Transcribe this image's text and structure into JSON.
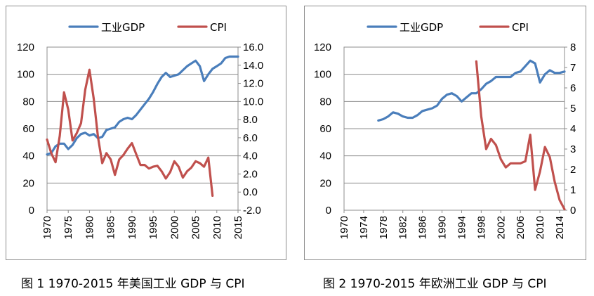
{
  "chart_data": [
    {
      "type": "line",
      "legend_position": "top",
      "series": [
        {
          "name": "工业GDP",
          "axis": "left",
          "color": "#4a7ebb",
          "x": [
            1970,
            1971,
            1972,
            1973,
            1974,
            1975,
            1976,
            1977,
            1978,
            1979,
            1980,
            1981,
            1982,
            1983,
            1984,
            1985,
            1986,
            1987,
            1988,
            1989,
            1990,
            1991,
            1992,
            1993,
            1994,
            1995,
            1996,
            1997,
            1998,
            1999,
            2000,
            2001,
            2002,
            2003,
            2004,
            2005,
            2006,
            2007,
            2008,
            2009,
            2010,
            2011,
            2012,
            2013,
            2014,
            2015
          ],
          "values": [
            41,
            42,
            47,
            49,
            49,
            45,
            48,
            53,
            56,
            57,
            55,
            56,
            53,
            54,
            59,
            60,
            61,
            65,
            67,
            68,
            67,
            70,
            74,
            78,
            82,
            87,
            93,
            98,
            101,
            98,
            99,
            100,
            103,
            106,
            108,
            110,
            106,
            95,
            100,
            104,
            106,
            108,
            112,
            113,
            113,
            113
          ]
        },
        {
          "name": "CPI",
          "axis": "right",
          "color": "#c0504d",
          "x": [
            1970,
            1971,
            1972,
            1973,
            1974,
            1975,
            1976,
            1977,
            1978,
            1979,
            1980,
            1981,
            1982,
            1983,
            1984,
            1985,
            1986,
            1987,
            1988,
            1989,
            1990,
            1991,
            1992,
            1993,
            1994,
            1995,
            1996,
            1997,
            1998,
            1999,
            2000,
            2001,
            2002,
            2003,
            2004,
            2005,
            2006,
            2007,
            2008,
            2009
          ],
          "values": [
            5.8,
            4.3,
            3.3,
            6.2,
            11.0,
            9.1,
            5.7,
            6.5,
            7.6,
            11.3,
            13.5,
            10.3,
            6.1,
            3.2,
            4.3,
            3.6,
            1.9,
            3.6,
            4.1,
            4.8,
            5.4,
            4.2,
            3.0,
            3.0,
            2.6,
            2.8,
            2.9,
            2.3,
            1.5,
            2.2,
            3.4,
            2.8,
            1.6,
            2.3,
            2.7,
            3.4,
            3.2,
            2.8,
            3.8,
            -0.4
          ]
        }
      ],
      "x_ticks": [
        "1970",
        "1975",
        "1980",
        "1985",
        "1990",
        "1995",
        "2000",
        "2005",
        "2010",
        "2015"
      ],
      "y_left_ticks": [
        "0",
        "20",
        "40",
        "60",
        "80",
        "100",
        "120"
      ],
      "y_right_ticks": [
        "-2.0",
        "0.0",
        "2.0",
        "4.0",
        "6.0",
        "8.0",
        "10.0",
        "12.0",
        "14.0",
        "16.0"
      ],
      "xlim": [
        1970,
        2015
      ],
      "ylim_left": [
        0,
        120
      ],
      "ylim_right": [
        -2,
        16
      ],
      "grid": "horizontal"
    },
    {
      "type": "line",
      "legend_position": "top",
      "series": [
        {
          "name": "工业GDP",
          "axis": "left",
          "color": "#4a7ebb",
          "x": [
            1977,
            1978,
            1979,
            1980,
            1981,
            1982,
            1983,
            1984,
            1985,
            1986,
            1987,
            1988,
            1989,
            1990,
            1991,
            1992,
            1993,
            1994,
            1995,
            1996,
            1997,
            1998,
            1999,
            2000,
            2001,
            2002,
            2003,
            2004,
            2005,
            2006,
            2007,
            2008,
            2009,
            2010,
            2011,
            2012,
            2013,
            2014,
            2015
          ],
          "values": [
            66,
            67,
            69,
            72,
            71,
            69,
            68,
            68,
            70,
            73,
            74,
            75,
            77,
            82,
            85,
            86,
            84,
            80,
            83,
            86,
            86,
            89,
            93,
            95,
            98,
            98,
            98,
            98,
            101,
            102,
            106,
            110,
            108,
            94,
            100,
            103,
            101,
            101,
            102
          ]
        },
        {
          "name": "CPI",
          "axis": "right",
          "color": "#c0504d",
          "x": [
            1997,
            1998,
            1999,
            2000,
            2001,
            2002,
            2003,
            2004,
            2005,
            2006,
            2007,
            2008,
            2009,
            2010,
            2011,
            2012,
            2013,
            2014,
            2015
          ],
          "values": [
            7.3,
            4.6,
            3.0,
            3.5,
            3.2,
            2.5,
            2.1,
            2.3,
            2.3,
            2.3,
            2.4,
            3.7,
            1.0,
            1.9,
            3.1,
            2.6,
            1.4,
            0.5,
            0.05
          ]
        }
      ],
      "x_ticks": [
        "1970",
        "1974",
        "1978",
        "1982",
        "1986",
        "1990",
        "1994",
        "1998",
        "2002",
        "2006",
        "2010",
        "2014"
      ],
      "y_left_ticks": [
        "0",
        "20",
        "40",
        "60",
        "80",
        "100",
        "120"
      ],
      "y_right_ticks": [
        "0",
        "1",
        "2",
        "3",
        "4",
        "5",
        "6",
        "7",
        "8"
      ],
      "xlim": [
        1970,
        2015
      ],
      "ylim_left": [
        0,
        120
      ],
      "ylim_right": [
        0,
        8
      ],
      "grid": "horizontal"
    }
  ],
  "captions": {
    "fig1": "图 1 1970-2015 年美国工业 GDP 与 CPI",
    "fig2": "图 2 1970-2015 年欧洲工业 GDP 与 CPI"
  },
  "colors": {
    "gdp": "#4a7ebb",
    "cpi": "#c0504d",
    "grid": "#8c8c8c"
  }
}
